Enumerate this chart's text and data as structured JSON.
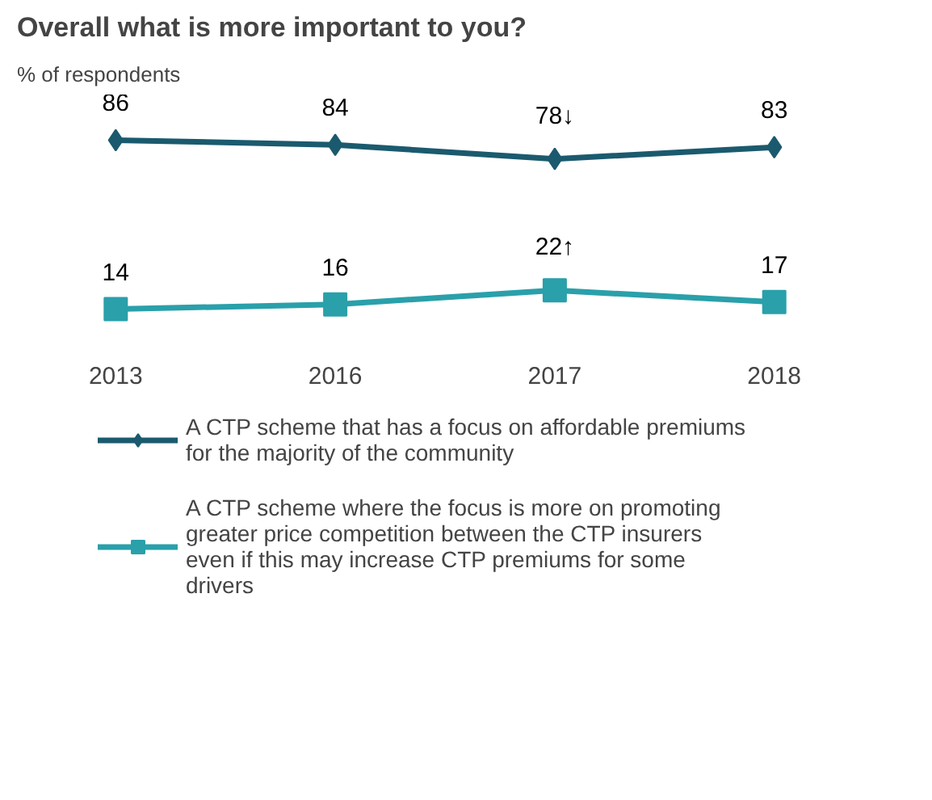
{
  "chart_data": {
    "type": "line",
    "title": "Overall what is more important to you?",
    "subtitle": "% of respondents",
    "categories": [
      "2013",
      "2016",
      "2017",
      "2018"
    ],
    "series": [
      {
        "name": "A CTP scheme that has a focus on affordable premiums for the majority of the community",
        "color": "#1b5a6e",
        "marker": "diamond",
        "values": [
          86,
          84,
          78,
          83
        ],
        "value_labels": [
          "86",
          "84",
          "78↓",
          "83"
        ]
      },
      {
        "name": "A CTP scheme where the focus is more on promoting greater price competition between the CTP insurers even if this may increase CTP premiums for some drivers",
        "color": "#2aa0aa",
        "marker": "square",
        "values": [
          14,
          16,
          22,
          17
        ],
        "value_labels": [
          "14",
          "16",
          "22↑",
          "17"
        ]
      }
    ],
    "legend": "bottom",
    "grid": false
  }
}
